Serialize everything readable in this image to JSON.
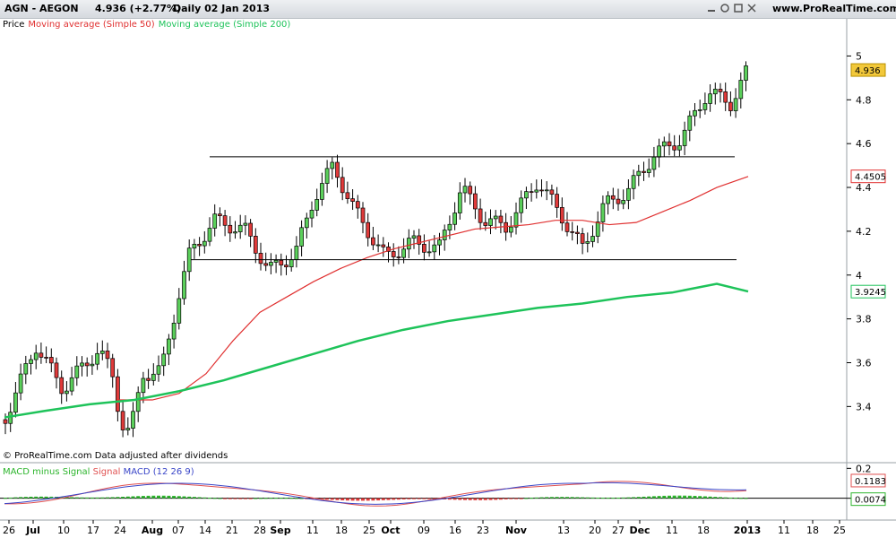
{
  "title": {
    "symbol": "AGN - AEGON",
    "price": "4.936 (+2.77%)",
    "period_date": "Daily  02 Jan 2013",
    "site": "www.ProRealTime.com"
  },
  "legend": {
    "price": "Price",
    "ma50": "Moving average (Simple 50)",
    "ma200": "Moving average (Simple 200)"
  },
  "watermark": "© ProRealTime.com  Data adjusted after dividends",
  "macd_legend": {
    "hist": "MACD minus Signal",
    "signal": "Signal",
    "macd": "MACD (12 26 9)"
  },
  "colors": {
    "ma50": "#e03030",
    "ma200": "#1ec35a",
    "candle_up": "#5bd05b",
    "candle_down": "#e03a3a",
    "hist_pos": "#2db52d",
    "hist_neg": "#e03a3a",
    "macd_line": "#3a46c8",
    "signal_line": "#e05050",
    "price_tag": "#f2c83a"
  },
  "chart_data": {
    "type": "candlestick",
    "y_ticks": [
      "5",
      "4.8",
      "4.6",
      "4.4",
      "4.2",
      "4",
      "3.8",
      "3.6",
      "3.4"
    ],
    "ylim": [
      3.25,
      5.1
    ],
    "x_ticks": [
      "26",
      "Jul",
      "10",
      "17",
      "24",
      "Aug",
      "07",
      "14",
      "21",
      "28",
      "Sep",
      "11",
      "18",
      "25",
      "Oct",
      "09",
      "16",
      "23",
      "Nov",
      "13",
      "20",
      "27",
      "Dec",
      "11",
      "18",
      "2013",
      "11",
      "18",
      "25"
    ],
    "x_tick_positions": [
      10,
      37,
      71,
      104,
      134,
      170,
      199,
      229,
      259,
      290,
      313,
      349,
      381,
      412,
      436,
      473,
      508,
      539,
      576,
      629,
      664,
      690,
      714,
      750,
      785,
      834,
      875,
      907,
      937
    ],
    "price_tags": {
      "last": "4.936",
      "ma50": "4.4505",
      "ma200": "3.9245"
    },
    "macd": {
      "y_ticks": [
        "0.2",
        "0"
      ],
      "ylim": [
        -0.08,
        0.22
      ],
      "macd_tag": "0.1183",
      "hist_tag": "0.0074"
    },
    "annotations": {
      "resistance_level": 4.54,
      "support_level": 4.07
    }
  }
}
